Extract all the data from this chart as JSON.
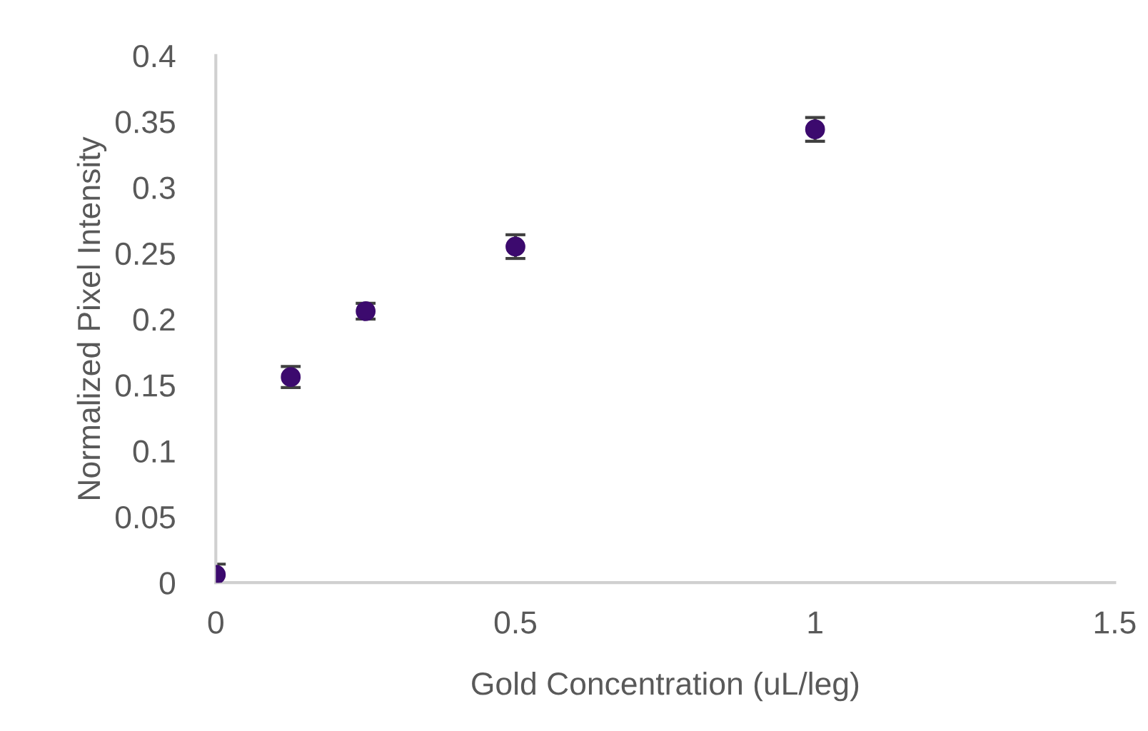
{
  "chart_data": {
    "type": "scatter",
    "xlabel": "Gold Concentration (uL/leg)",
    "ylabel": "Normalized Pixel Intensity",
    "x": [
      0,
      0.125,
      0.25,
      0.5,
      1
    ],
    "series": [
      {
        "color": "#3c0a6e",
        "values": [
          0.006,
          0.156,
          0.206,
          0.255,
          0.344
        ],
        "errors": [
          0.008,
          0.008,
          0.006,
          0.009,
          0.009
        ]
      }
    ],
    "xlim": [
      0,
      1.5
    ],
    "xticks": [
      0,
      0.5,
      1,
      1.5
    ],
    "ylim": [
      0,
      0.4
    ],
    "yticks": [
      0,
      0.05,
      0.1,
      0.15,
      0.2,
      0.25,
      0.3,
      0.35,
      0.4
    ],
    "marker": "circle",
    "grid": false,
    "legend": false
  }
}
